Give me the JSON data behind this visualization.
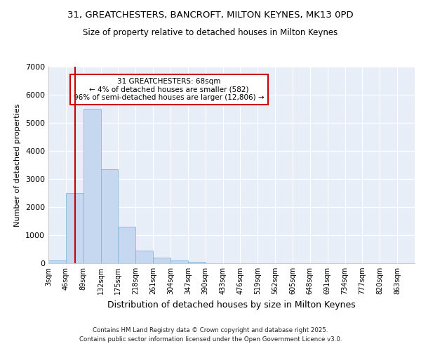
{
  "title_line1": "31, GREATCHESTERS, BANCROFT, MILTON KEYNES, MK13 0PD",
  "title_line2": "Size of property relative to detached houses in Milton Keynes",
  "xlabel": "Distribution of detached houses by size in Milton Keynes",
  "ylabel": "Number of detached properties",
  "bin_labels": [
    "3sqm",
    "46sqm",
    "89sqm",
    "132sqm",
    "175sqm",
    "218sqm",
    "261sqm",
    "304sqm",
    "347sqm",
    "390sqm",
    "433sqm",
    "476sqm",
    "519sqm",
    "562sqm",
    "605sqm",
    "648sqm",
    "691sqm",
    "734sqm",
    "777sqm",
    "820sqm",
    "863sqm"
  ],
  "bar_values": [
    100,
    2500,
    5500,
    3350,
    1300,
    440,
    200,
    90,
    50,
    10,
    3,
    1,
    0,
    0,
    0,
    0,
    0,
    0,
    0,
    0,
    0
  ],
  "bar_color": "#c5d8f0",
  "bar_edge_color": "#7aadd4",
  "ylim": [
    0,
    7000
  ],
  "yticks": [
    0,
    1000,
    2000,
    3000,
    4000,
    5000,
    6000,
    7000
  ],
  "property_size_sqm": 68,
  "vline_color": "#cc0000",
  "annotation_text": "31 GREATCHESTERS: 68sqm\n← 4% of detached houses are smaller (582)\n96% of semi-detached houses are larger (12,806) →",
  "annotation_box_color": "#cc0000",
  "annotation_fill": "white",
  "footer_line1": "Contains HM Land Registry data © Crown copyright and database right 2025.",
  "footer_line2": "Contains public sector information licensed under the Open Government Licence v3.0.",
  "background_color": "#e8eef8",
  "grid_color": "#ffffff",
  "bin_edges": [
    3,
    46,
    89,
    132,
    175,
    218,
    261,
    304,
    347,
    390,
    433,
    476,
    519,
    562,
    605,
    648,
    691,
    734,
    777,
    820,
    863,
    906
  ]
}
